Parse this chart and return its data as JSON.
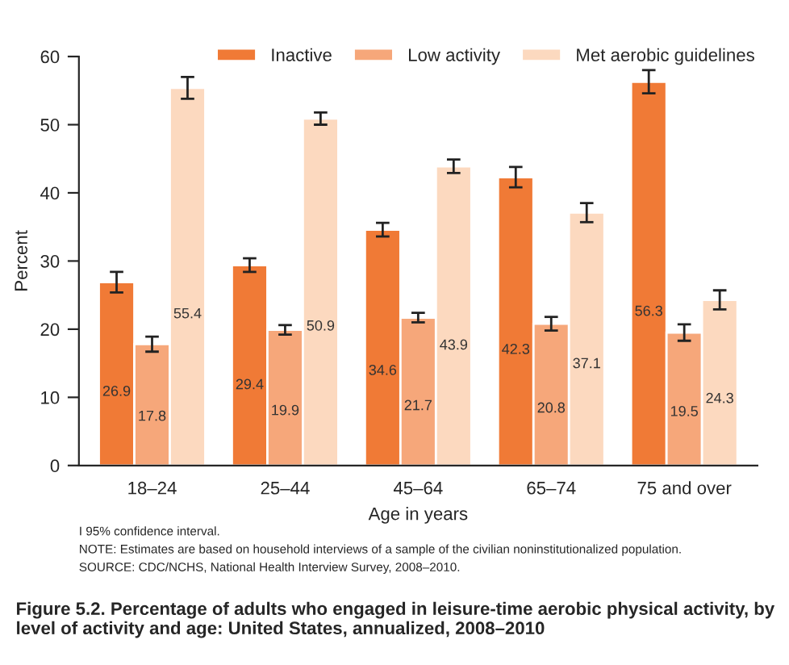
{
  "chart_data": {
    "type": "bar",
    "title": "Figure 5.2. Percentage of adults who engaged in leisure-time aerobic physical activity, by level of activity and age: United States, annualized, 2008–2010",
    "xlabel": "Age in years",
    "ylabel": "Percent",
    "categories": [
      "18–24",
      "25–44",
      "45–64",
      "65–74",
      "75 and over"
    ],
    "series": [
      {
        "name": "Inactive",
        "color": "#f07a36",
        "values": [
          26.9,
          29.4,
          34.6,
          42.3,
          56.3
        ],
        "errors": [
          1.5,
          1.0,
          1.0,
          1.5,
          1.7
        ]
      },
      {
        "name": "Low activity",
        "color": "#f6a77a",
        "values": [
          17.8,
          19.9,
          21.7,
          20.8,
          19.5
        ],
        "errors": [
          1.1,
          0.7,
          0.7,
          1.0,
          1.2
        ]
      },
      {
        "name": "Met aerobic guidelines",
        "color": "#fcd9bf",
        "values": [
          55.4,
          50.9,
          43.9,
          37.1,
          24.3
        ],
        "errors": [
          1.6,
          0.9,
          1.0,
          1.4,
          1.4
        ]
      }
    ],
    "ylim": [
      0,
      60
    ],
    "yticks": [
      0,
      10,
      20,
      30,
      40,
      50,
      60
    ],
    "data_labels": true,
    "legend": "top right",
    "grid": false,
    "annotations": [
      "I 95% confidence interval.",
      "NOTE: Estimates are based on household interviews of a sample of the civilian noninstitutionalized population.",
      "SOURCE: CDC/NCHS, National Health Interview Survey, 2008–2010."
    ]
  }
}
